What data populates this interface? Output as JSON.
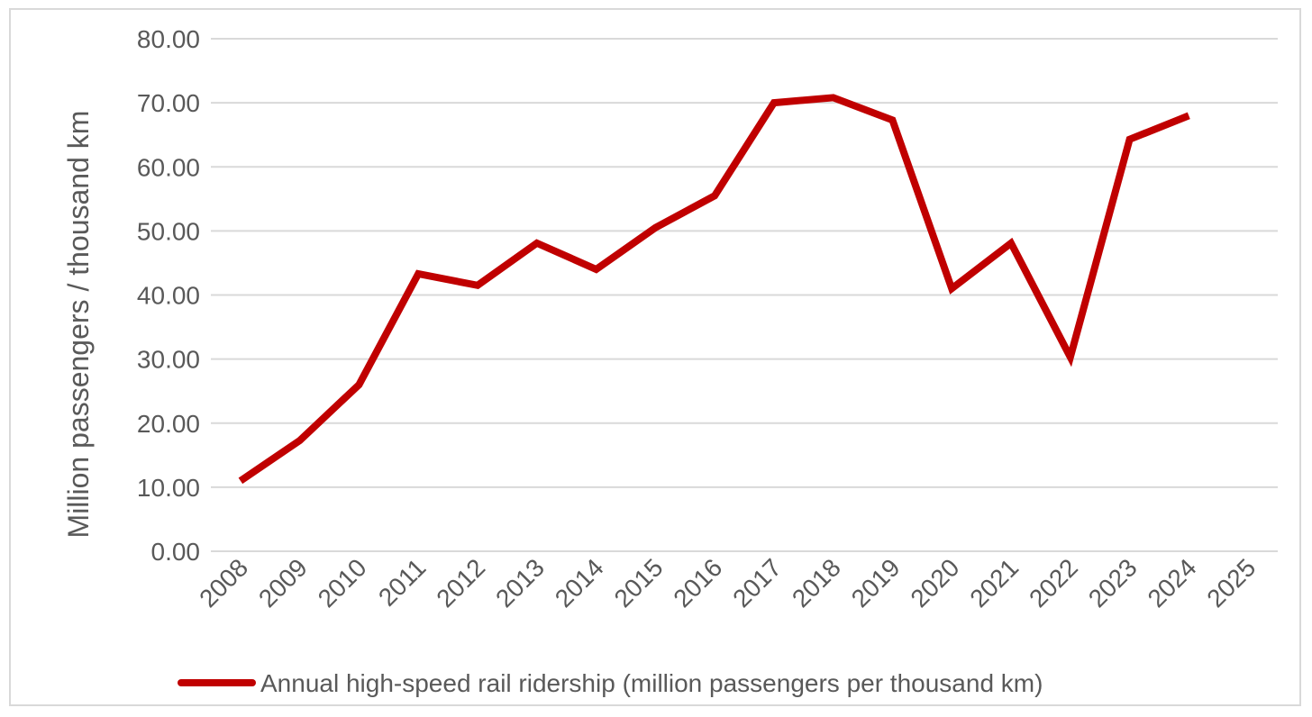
{
  "chart_data": {
    "type": "line",
    "categories": [
      "2008",
      "2009",
      "2010",
      "2011",
      "2012",
      "2013",
      "2014",
      "2015",
      "2016",
      "2017",
      "2018",
      "2019",
      "2020",
      "2021",
      "2022",
      "2023",
      "2024",
      "2025"
    ],
    "series": [
      {
        "name": "Annual high-speed rail ridership (million passengers per thousand km)",
        "color": "#c00000",
        "values": [
          11.0,
          17.3,
          26.0,
          43.3,
          41.5,
          48.1,
          44.0,
          50.5,
          55.5,
          70.0,
          70.8,
          67.3,
          41.0,
          48.1,
          30.3,
          64.3,
          68.0,
          null
        ]
      }
    ],
    "ylabel": "Million passengers / thousand km",
    "xlabel": "",
    "ylim": [
      0,
      80
    ],
    "yticks": [
      "0.00",
      "10.00",
      "20.00",
      "30.00",
      "40.00",
      "50.00",
      "60.00",
      "70.00",
      "80.00"
    ],
    "grid": true,
    "legend_position": "bottom"
  }
}
